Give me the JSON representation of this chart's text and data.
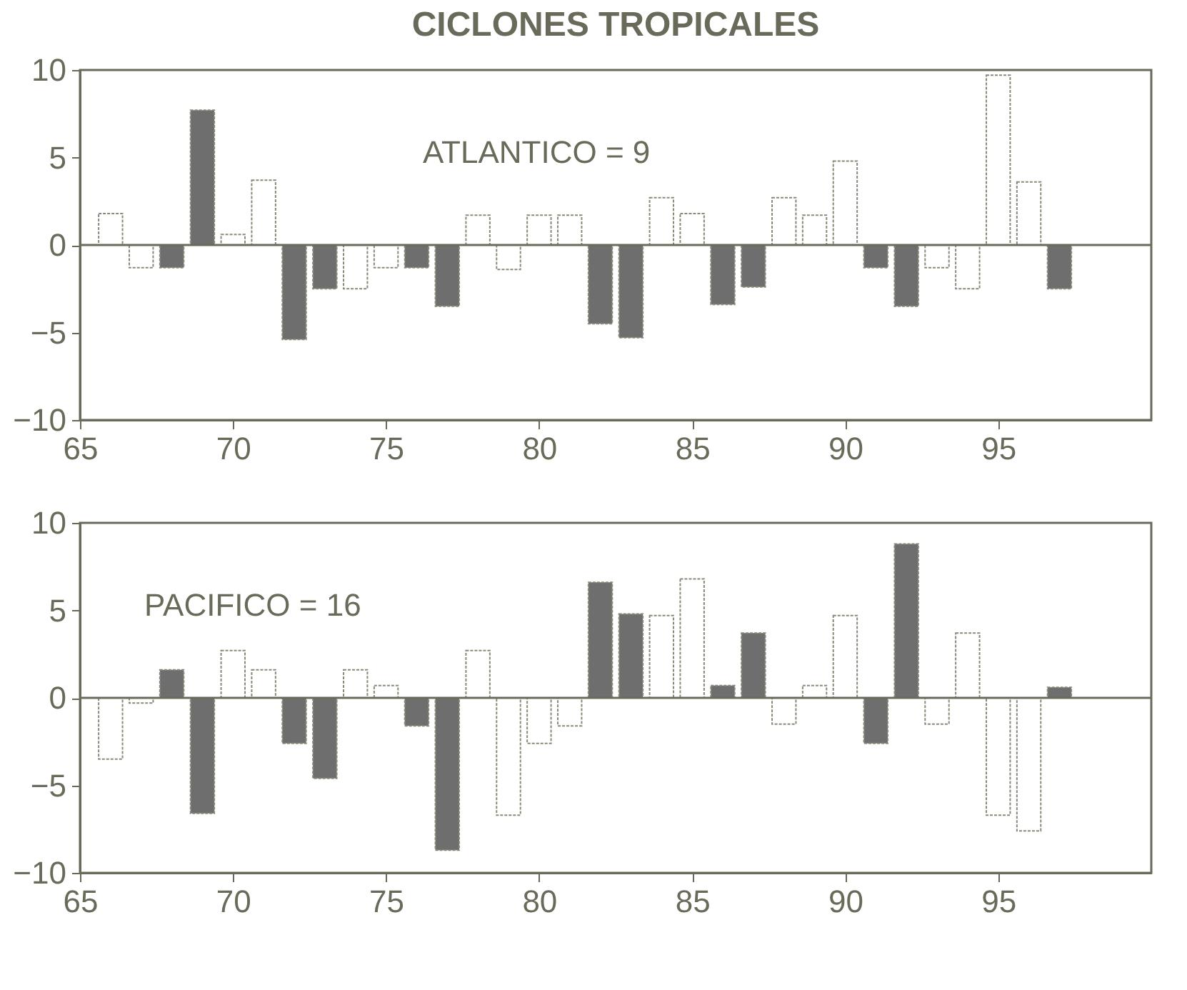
{
  "chart_data": [
    {
      "type": "bar",
      "title": "CICLONES TROPICALES",
      "annotations": [
        "ATLANTICO   = 9"
      ],
      "x": [
        66,
        67,
        68,
        69,
        70,
        71,
        72,
        73,
        74,
        75,
        76,
        77,
        78,
        79,
        80,
        81,
        82,
        83,
        84,
        85,
        86,
        87,
        88,
        89,
        90,
        91,
        92,
        93,
        94,
        95,
        96,
        97
      ],
      "values": [
        1.8,
        -1.3,
        -1.3,
        7.7,
        0.6,
        3.7,
        -5.4,
        -2.5,
        -2.5,
        -1.3,
        -1.3,
        -3.5,
        1.7,
        -1.4,
        1.7,
        1.7,
        -4.5,
        -5.3,
        2.7,
        1.8,
        -3.4,
        -2.4,
        2.7,
        1.7,
        4.8,
        -1.3,
        -3.5,
        -1.3,
        -2.5,
        9.7,
        3.6,
        -2.5
      ],
      "colors": [
        "#ffffff",
        "#ffffff",
        "#6e6e6e",
        "#6e6e6e",
        "#ffffff",
        "#ffffff",
        "#6e6e6e",
        "#6e6e6e",
        "#ffffff",
        "#ffffff",
        "#6e6e6e",
        "#6e6e6e",
        "#ffffff",
        "#ffffff",
        "#ffffff",
        "#ffffff",
        "#6e6e6e",
        "#6e6e6e",
        "#ffffff",
        "#ffffff",
        "#6e6e6e",
        "#6e6e6e",
        "#ffffff",
        "#ffffff",
        "#ffffff",
        "#6e6e6e",
        "#6e6e6e",
        "#ffffff",
        "#ffffff",
        "#ffffff",
        "#ffffff",
        "#6e6e6e"
      ],
      "xlim": [
        65,
        100
      ],
      "xticks": [
        65,
        70,
        75,
        80,
        85,
        90,
        95
      ],
      "ylim": [
        -10,
        10
      ],
      "yticks": [
        -10,
        -5,
        0,
        5,
        10
      ]
    },
    {
      "type": "bar",
      "annotations": [
        "PACIFICO   = 16"
      ],
      "x": [
        66,
        67,
        68,
        69,
        70,
        71,
        72,
        73,
        74,
        75,
        76,
        77,
        78,
        79,
        80,
        81,
        82,
        83,
        84,
        85,
        86,
        87,
        88,
        89,
        90,
        91,
        92,
        93,
        94,
        95,
        96,
        97
      ],
      "values": [
        -3.5,
        -0.3,
        1.6,
        -6.6,
        2.7,
        1.6,
        -2.6,
        -4.6,
        1.6,
        0.7,
        -1.6,
        -8.7,
        2.7,
        -6.7,
        -2.6,
        -1.6,
        6.6,
        4.8,
        4.7,
        6.8,
        0.7,
        3.7,
        -1.5,
        0.7,
        4.7,
        -2.6,
        8.8,
        -1.5,
        3.7,
        -6.7,
        -7.6,
        0.6
      ],
      "colors": [
        "#ffffff",
        "#ffffff",
        "#6e6e6e",
        "#6e6e6e",
        "#ffffff",
        "#ffffff",
        "#6e6e6e",
        "#6e6e6e",
        "#ffffff",
        "#ffffff",
        "#6e6e6e",
        "#6e6e6e",
        "#ffffff",
        "#ffffff",
        "#ffffff",
        "#ffffff",
        "#6e6e6e",
        "#6e6e6e",
        "#ffffff",
        "#ffffff",
        "#6e6e6e",
        "#6e6e6e",
        "#ffffff",
        "#ffffff",
        "#ffffff",
        "#6e6e6e",
        "#6e6e6e",
        "#ffffff",
        "#ffffff",
        "#ffffff",
        "#ffffff",
        "#6e6e6e"
      ],
      "xlim": [
        65,
        100
      ],
      "xticks": [
        65,
        70,
        75,
        80,
        85,
        90,
        95
      ],
      "ylim": [
        -10,
        10
      ],
      "yticks": [
        -10,
        -5,
        0,
        5,
        10
      ]
    }
  ]
}
